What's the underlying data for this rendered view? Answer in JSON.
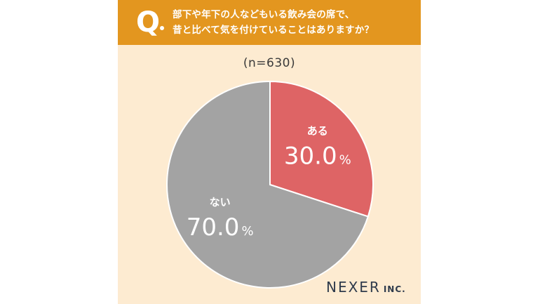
{
  "question": {
    "mark": "Q",
    "line1": "部下や年下の人などもいる飲み会の席で、",
    "line2": "昔と比べて気を付けていることはありますか？"
  },
  "sample": "(n=630)",
  "logo": {
    "main": "NEXER",
    "sub": "INC."
  },
  "colors": {
    "banner": "#e3961f",
    "background": "#fdebd1",
    "yes": "#de6465",
    "no": "#a3a3a3"
  },
  "chart_data": {
    "type": "pie",
    "slices": [
      {
        "label": "ある",
        "value": 30.0,
        "unit": "%",
        "color": "#de6465"
      },
      {
        "label": "ない",
        "value": 70.0,
        "unit": "%",
        "color": "#a3a3a3"
      }
    ]
  }
}
